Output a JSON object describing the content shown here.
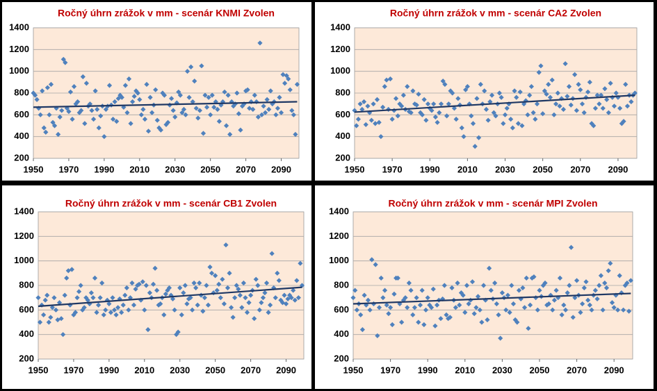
{
  "chart_data": [
    {
      "type": "scatter",
      "title": "Ročný úhrn zrážok v mm - scenár KNMI Zvolen",
      "color": "#4f81bd",
      "xlim": [
        1950,
        2100
      ],
      "xticks": [
        1950,
        1970,
        1990,
        2010,
        2030,
        2050,
        2070,
        2090
      ],
      "ylim": [
        200,
        1400
      ],
      "yticks": [
        200,
        400,
        600,
        800,
        1000,
        1200,
        1400
      ],
      "grid": true,
      "x": [
        1950,
        1951,
        1952,
        1953,
        1954,
        1955,
        1956,
        1957,
        1958,
        1959,
        1960,
        1961,
        1962,
        1963,
        1964,
        1965,
        1966,
        1967,
        1968,
        1969,
        1970,
        1971,
        1972,
        1973,
        1974,
        1975,
        1976,
        1977,
        1978,
        1979,
        1980,
        1981,
        1982,
        1983,
        1984,
        1985,
        1986,
        1987,
        1988,
        1989,
        1990,
        1991,
        1992,
        1993,
        1994,
        1995,
        1996,
        1997,
        1998,
        1999,
        2000,
        2001,
        2002,
        2003,
        2004,
        2005,
        2006,
        2007,
        2008,
        2009,
        2010,
        2011,
        2012,
        2013,
        2014,
        2015,
        2016,
        2017,
        2018,
        2019,
        2020,
        2021,
        2022,
        2023,
        2024,
        2025,
        2026,
        2027,
        2028,
        2029,
        2030,
        2031,
        2032,
        2033,
        2034,
        2035,
        2036,
        2037,
        2038,
        2039,
        2040,
        2041,
        2042,
        2043,
        2044,
        2045,
        2046,
        2047,
        2048,
        2049,
        2050,
        2051,
        2052,
        2053,
        2054,
        2055,
        2056,
        2057,
        2058,
        2059,
        2060,
        2061,
        2062,
        2063,
        2064,
        2065,
        2066,
        2067,
        2068,
        2069,
        2070,
        2071,
        2072,
        2073,
        2074,
        2075,
        2076,
        2077,
        2078,
        2079,
        2080,
        2081,
        2082,
        2083,
        2084,
        2085,
        2086,
        2087,
        2088,
        2089,
        2090,
        2091,
        2092,
        2093,
        2094,
        2095,
        2096,
        2097,
        2098,
        2099
      ],
      "values": [
        800,
        780,
        740,
        660,
        600,
        820,
        480,
        440,
        850,
        600,
        880,
        530,
        500,
        660,
        420,
        580,
        640,
        1110,
        1080,
        660,
        630,
        810,
        560,
        860,
        700,
        720,
        620,
        640,
        950,
        520,
        890,
        680,
        700,
        640,
        560,
        820,
        650,
        480,
        590,
        680,
        400,
        650,
        680,
        870,
        690,
        560,
        720,
        540,
        750,
        780,
        760,
        670,
        870,
        620,
        930,
        520,
        720,
        770,
        820,
        800,
        740,
        600,
        650,
        560,
        880,
        450,
        760,
        620,
        690,
        830,
        550,
        480,
        460,
        800,
        780,
        510,
        530,
        690,
        750,
        640,
        580,
        710,
        810,
        780,
        620,
        650,
        600,
        1000,
        760,
        1040,
        720,
        910,
        660,
        570,
        640,
        1050,
        430,
        780,
        670,
        760,
        600,
        780,
        670,
        720,
        650,
        540,
        690,
        720,
        810,
        500,
        780,
        420,
        720,
        680,
        700,
        800,
        610,
        460,
        680,
        700,
        820,
        830,
        660,
        720,
        650,
        780,
        720,
        580,
        1260,
        600,
        680,
        620,
        740,
        650,
        820,
        700,
        720,
        600,
        660,
        760,
        620,
        970,
        890,
        960,
        930,
        830,
        640,
        600,
        420,
        880
      ],
      "trendline": {
        "x": [
          1950,
          2099
        ],
        "values": [
          670,
          720
        ],
        "color": "#1f3864"
      }
    },
    {
      "type": "scatter",
      "title": "Ročný úhrn zrážok v mm - scenár CA2 Zvolen",
      "color": "#4f81bd",
      "xlim": [
        1950,
        2100
      ],
      "xticks": [
        1950,
        1970,
        1990,
        2010,
        2030,
        2050,
        2070,
        2090
      ],
      "ylim": [
        200,
        1400
      ],
      "yticks": [
        200,
        400,
        600,
        800,
        1000,
        1200,
        1400
      ],
      "grid": true,
      "x": [
        1950,
        1951,
        1952,
        1953,
        1954,
        1955,
        1956,
        1957,
        1958,
        1959,
        1960,
        1961,
        1962,
        1963,
        1964,
        1965,
        1966,
        1967,
        1968,
        1969,
        1970,
        1971,
        1972,
        1973,
        1974,
        1975,
        1976,
        1977,
        1978,
        1979,
        1980,
        1981,
        1982,
        1983,
        1984,
        1985,
        1986,
        1987,
        1988,
        1989,
        1990,
        1991,
        1992,
        1993,
        1994,
        1995,
        1996,
        1997,
        1998,
        1999,
        2000,
        2001,
        2002,
        2003,
        2004,
        2005,
        2006,
        2007,
        2008,
        2009,
        2010,
        2011,
        2012,
        2013,
        2014,
        2015,
        2016,
        2017,
        2018,
        2019,
        2020,
        2021,
        2022,
        2023,
        2024,
        2025,
        2026,
        2027,
        2028,
        2029,
        2030,
        2031,
        2032,
        2033,
        2034,
        2035,
        2036,
        2037,
        2038,
        2039,
        2040,
        2041,
        2042,
        2043,
        2044,
        2045,
        2046,
        2047,
        2048,
        2049,
        2050,
        2051,
        2052,
        2053,
        2054,
        2055,
        2056,
        2057,
        2058,
        2059,
        2060,
        2061,
        2062,
        2063,
        2064,
        2065,
        2066,
        2067,
        2068,
        2069,
        2070,
        2071,
        2072,
        2073,
        2074,
        2075,
        2076,
        2077,
        2078,
        2079,
        2080,
        2081,
        2082,
        2083,
        2084,
        2085,
        2086,
        2087,
        2088,
        2089,
        2090,
        2091,
        2092,
        2093,
        2094,
        2095,
        2096,
        2097,
        2098,
        2099
      ],
      "values": [
        640,
        500,
        560,
        700,
        650,
        720,
        510,
        680,
        620,
        550,
        700,
        520,
        740,
        530,
        400,
        670,
        860,
        920,
        650,
        930,
        560,
        640,
        750,
        590,
        700,
        680,
        780,
        650,
        860,
        630,
        620,
        820,
        700,
        690,
        790,
        620,
        600,
        740,
        550,
        700,
        660,
        640,
        700,
        580,
        530,
        620,
        700,
        910,
        880,
        590,
        700,
        820,
        800,
        660,
        560,
        750,
        690,
        480,
        400,
        830,
        860,
        700,
        590,
        520,
        310,
        750,
        390,
        880,
        700,
        820,
        650,
        550,
        720,
        780,
        620,
        590,
        700,
        800,
        760,
        520,
        600,
        660,
        700,
        560,
        480,
        820,
        760,
        520,
        810,
        500,
        700,
        730,
        600,
        780,
        860,
        620,
        560,
        700,
        990,
        1050,
        610,
        820,
        790,
        880,
        760,
        920,
        600,
        700,
        800,
        680,
        750,
        650,
        1070,
        770,
        860,
        690,
        750,
        970,
        640,
        880,
        830,
        700,
        620,
        760,
        810,
        900,
        520,
        500,
        660,
        780,
        700,
        780,
        660,
        840,
        740,
        620,
        890,
        760,
        680,
        800,
        760,
        660,
        520,
        540,
        880,
        680,
        780,
        720,
        780,
        800
      ],
      "trendline": {
        "x": [
          1950,
          2099
        ],
        "values": [
          625,
          780
        ],
        "color": "#1f3864"
      }
    },
    {
      "type": "scatter",
      "title": "Ročný úhrn zrážok v mm - scenár CB1 Zvolen",
      "color": "#4f81bd",
      "xlim": [
        1950,
        2100
      ],
      "xticks": [
        1950,
        1970,
        1990,
        2010,
        2030,
        2050,
        2070,
        2090
      ],
      "ylim": [
        200,
        1400
      ],
      "yticks": [
        200,
        400,
        600,
        800,
        1000,
        1200,
        1400
      ],
      "grid": true,
      "x": [
        1950,
        1951,
        1952,
        1953,
        1954,
        1955,
        1956,
        1957,
        1958,
        1959,
        1960,
        1961,
        1962,
        1963,
        1964,
        1965,
        1966,
        1967,
        1968,
        1969,
        1970,
        1971,
        1972,
        1973,
        1974,
        1975,
        1976,
        1977,
        1978,
        1979,
        1980,
        1981,
        1982,
        1983,
        1984,
        1985,
        1986,
        1987,
        1988,
        1989,
        1990,
        1991,
        1992,
        1993,
        1994,
        1995,
        1996,
        1997,
        1998,
        1999,
        2000,
        2001,
        2002,
        2003,
        2004,
        2005,
        2006,
        2007,
        2008,
        2009,
        2010,
        2011,
        2012,
        2013,
        2014,
        2015,
        2016,
        2017,
        2018,
        2019,
        2020,
        2021,
        2022,
        2023,
        2024,
        2025,
        2026,
        2027,
        2028,
        2029,
        2030,
        2031,
        2032,
        2033,
        2034,
        2035,
        2036,
        2037,
        2038,
        2039,
        2040,
        2041,
        2042,
        2043,
        2044,
        2045,
        2046,
        2047,
        2048,
        2049,
        2050,
        2051,
        2052,
        2053,
        2054,
        2055,
        2056,
        2057,
        2058,
        2059,
        2060,
        2061,
        2062,
        2063,
        2064,
        2065,
        2066,
        2067,
        2068,
        2069,
        2070,
        2071,
        2072,
        2073,
        2074,
        2075,
        2076,
        2077,
        2078,
        2079,
        2080,
        2081,
        2082,
        2083,
        2084,
        2085,
        2086,
        2087,
        2088,
        2089,
        2090,
        2091,
        2092,
        2093,
        2094,
        2095,
        2096,
        2097,
        2098,
        2099
      ],
      "values": [
        700,
        500,
        640,
        560,
        680,
        720,
        500,
        540,
        620,
        700,
        600,
        520,
        660,
        530,
        400,
        720,
        860,
        920,
        640,
        930,
        560,
        580,
        700,
        750,
        800,
        600,
        620,
        700,
        680,
        650,
        740,
        700,
        860,
        580,
        640,
        700,
        820,
        560,
        600,
        680,
        650,
        580,
        700,
        600,
        560,
        620,
        690,
        580,
        640,
        720,
        780,
        600,
        700,
        820,
        640,
        770,
        800,
        810,
        680,
        830,
        600,
        800,
        440,
        740,
        700,
        810,
        940,
        760,
        640,
        650,
        700,
        560,
        730,
        760,
        780,
        720,
        690,
        600,
        400,
        420,
        780,
        560,
        740,
        800,
        650,
        690,
        700,
        600,
        820,
        780,
        640,
        820,
        720,
        590,
        700,
        800,
        640,
        950,
        900,
        740,
        880,
        760,
        810,
        700,
        850,
        650,
        1130,
        780,
        900,
        620,
        540,
        700,
        800,
        770,
        720,
        620,
        820,
        700,
        580,
        660,
        720,
        760,
        530,
        850,
        800,
        600,
        660,
        700,
        740,
        820,
        580,
        640,
        1060,
        780,
        700,
        900,
        840,
        680,
        660,
        720,
        650,
        690,
        720,
        700,
        760,
        680,
        840,
        700,
        980,
        800
      ],
      "trendline": {
        "x": [
          1950,
          2099
        ],
        "values": [
          630,
          785
        ],
        "color": "#1f3864"
      }
    },
    {
      "type": "scatter",
      "title": "Ročný úhrn zrážok v mm - scenár MPI Zvolen",
      "color": "#4f81bd",
      "xlim": [
        1950,
        2100
      ],
      "xticks": [
        1950,
        1970,
        1990,
        2010,
        2030,
        2050,
        2070,
        2090
      ],
      "ylim": [
        200,
        1400
      ],
      "yticks": [
        200,
        400,
        600,
        800,
        1000,
        1200,
        1400
      ],
      "grid": true,
      "x": [
        1950,
        1951,
        1952,
        1953,
        1954,
        1955,
        1956,
        1957,
        1958,
        1959,
        1960,
        1961,
        1962,
        1963,
        1964,
        1965,
        1966,
        1967,
        1968,
        1969,
        1970,
        1971,
        1972,
        1973,
        1974,
        1975,
        1976,
        1977,
        1978,
        1979,
        1980,
        1981,
        1982,
        1983,
        1984,
        1985,
        1986,
        1987,
        1988,
        1989,
        1990,
        1991,
        1992,
        1993,
        1994,
        1995,
        1996,
        1997,
        1998,
        1999,
        2000,
        2001,
        2002,
        2003,
        2004,
        2005,
        2006,
        2007,
        2008,
        2009,
        2010,
        2011,
        2012,
        2013,
        2014,
        2015,
        2016,
        2017,
        2018,
        2019,
        2020,
        2021,
        2022,
        2023,
        2024,
        2025,
        2026,
        2027,
        2028,
        2029,
        2030,
        2031,
        2032,
        2033,
        2034,
        2035,
        2036,
        2037,
        2038,
        2039,
        2040,
        2041,
        2042,
        2043,
        2044,
        2045,
        2046,
        2047,
        2048,
        2049,
        2050,
        2051,
        2052,
        2053,
        2054,
        2055,
        2056,
        2057,
        2058,
        2059,
        2060,
        2061,
        2062,
        2063,
        2064,
        2065,
        2066,
        2067,
        2068,
        2069,
        2070,
        2071,
        2072,
        2073,
        2074,
        2075,
        2076,
        2077,
        2078,
        2079,
        2080,
        2081,
        2082,
        2083,
        2084,
        2085,
        2086,
        2087,
        2088,
        2089,
        2090,
        2091,
        2092,
        2093,
        2094,
        2095,
        2096,
        2097,
        2098,
        2099
      ],
      "values": [
        700,
        760,
        600,
        650,
        560,
        440,
        720,
        640,
        680,
        600,
        1010,
        650,
        970,
        390,
        620,
        860,
        700,
        760,
        640,
        570,
        620,
        480,
        730,
        860,
        860,
        650,
        500,
        680,
        700,
        620,
        820,
        760,
        560,
        620,
        700,
        500,
        640,
        760,
        480,
        600,
        700,
        640,
        620,
        770,
        470,
        640,
        680,
        530,
        690,
        800,
        560,
        530,
        540,
        780,
        680,
        620,
        820,
        640,
        740,
        720,
        580,
        800,
        650,
        680,
        830,
        570,
        620,
        710,
        600,
        500,
        800,
        680,
        520,
        940,
        760,
        690,
        820,
        650,
        560,
        370,
        740,
        700,
        600,
        720,
        580,
        800,
        650,
        520,
        500,
        760,
        690,
        780,
        620,
        860,
        450,
        640,
        860,
        870,
        700,
        600,
        760,
        710,
        800,
        820,
        640,
        650,
        720,
        600,
        680,
        760,
        700,
        860,
        560,
        640,
        600,
        740,
        800,
        1110,
        540,
        700,
        840,
        720,
        580,
        650,
        780,
        830,
        680,
        640,
        600,
        720,
        760,
        690,
        800,
        880,
        600,
        820,
        780,
        920,
        980,
        660,
        620,
        720,
        600,
        880,
        740,
        600,
        800,
        820,
        590,
        840
      ],
      "trendline": {
        "x": [
          1950,
          2099
        ],
        "values": [
          650,
          735
        ],
        "color": "#1f3864"
      }
    }
  ]
}
